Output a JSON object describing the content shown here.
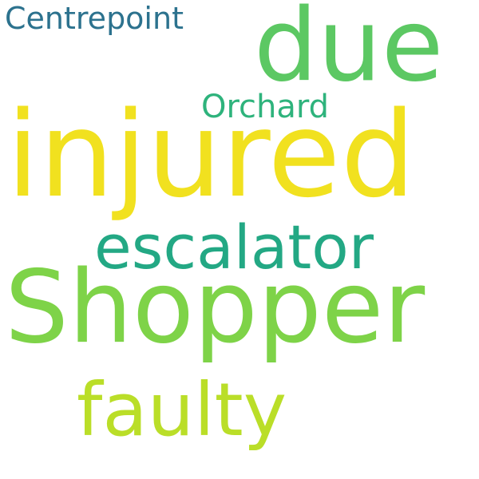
{
  "wordcloud": {
    "background": "#ffffff",
    "words": [
      {
        "text": "Shopper",
        "color": "#7ed348"
      },
      {
        "text": "injured",
        "color": "#f1e11f"
      },
      {
        "text": "due",
        "color": "#5cc863"
      },
      {
        "text": "escalator",
        "color": "#23a884"
      },
      {
        "text": "faulty",
        "color": "#bade28"
      },
      {
        "text": "Centrepoint",
        "color": "#2c728e"
      },
      {
        "text": "Orchard",
        "color": "#2eb37c"
      }
    ]
  }
}
